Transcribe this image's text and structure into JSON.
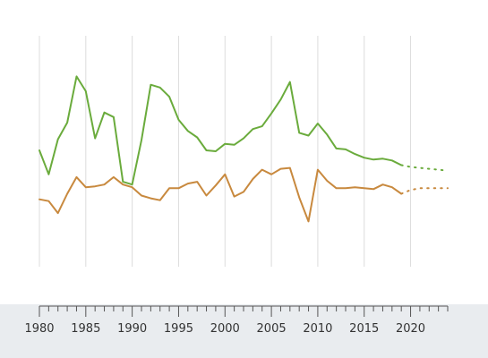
{
  "chart_data": {
    "type": "line",
    "title": "",
    "xlabel": "",
    "ylabel": "",
    "x_ticks": [
      1980,
      1985,
      1990,
      1995,
      2000,
      2005,
      2010,
      2015,
      2020
    ],
    "xlim": [
      1980,
      2024
    ],
    "ylim": [
      -5,
      20
    ],
    "grid": true,
    "series": [
      {
        "color": "#6aab3c",
        "x": [
          1980,
          1981,
          1982,
          1983,
          1984,
          1985,
          1986,
          1987,
          1988,
          1989,
          1990,
          1991,
          1992,
          1993,
          1994,
          1995,
          1996,
          1997,
          1998,
          1999,
          2000,
          2001,
          2002,
          2003,
          2004,
          2005,
          2006,
          2007,
          2008,
          2009,
          2010,
          2011,
          2012,
          2013,
          2014,
          2015,
          2016,
          2017,
          2018,
          2019
        ],
        "values": [
          7.6,
          5.0,
          8.8,
          10.6,
          15.6,
          14.0,
          8.9,
          11.7,
          11.2,
          4.2,
          3.9,
          8.7,
          14.7,
          14.4,
          13.4,
          10.9,
          9.7,
          9.0,
          7.6,
          7.5,
          8.3,
          8.2,
          8.9,
          9.9,
          10.2,
          11.6,
          13.1,
          15.0,
          9.5,
          9.2,
          10.5,
          9.3,
          7.8,
          7.7,
          7.2,
          6.8,
          6.6,
          6.7,
          6.5,
          6.0
        ],
        "dash": [
          false,
          false,
          false,
          false,
          false,
          false,
          false,
          false,
          false,
          false,
          false,
          false,
          false,
          false,
          false,
          false,
          false,
          false,
          false,
          false,
          false,
          false,
          false,
          false,
          false,
          false,
          false,
          false,
          false,
          false,
          false,
          false,
          false,
          false,
          false,
          false,
          false,
          false,
          false,
          false
        ]
      },
      {
        "color": "#6aab3c",
        "x": [
          2019,
          2020,
          2021,
          2022,
          2023,
          2024
        ],
        "values": [
          6.0,
          5.8,
          5.7,
          5.6,
          5.5,
          5.4
        ],
        "dashed": true
      },
      {
        "color": "#c8893e",
        "x": [
          1980,
          1981,
          1982,
          1983,
          1984,
          1985,
          1986,
          1987,
          1988,
          1989,
          1990,
          1991,
          1992,
          1993,
          1994,
          1995,
          1996,
          1997,
          1998,
          1999,
          2000,
          2001,
          2002,
          2003,
          2004,
          2005,
          2006,
          2007,
          2008,
          2009,
          2010,
          2011,
          2012,
          2013,
          2014,
          2015,
          2016,
          2017,
          2018,
          2019
        ],
        "values": [
          2.3,
          2.1,
          0.8,
          2.9,
          4.7,
          3.6,
          3.7,
          3.9,
          4.7,
          3.9,
          3.6,
          2.7,
          2.4,
          2.2,
          3.5,
          3.5,
          4.0,
          4.2,
          2.7,
          3.8,
          5.0,
          2.6,
          3.1,
          4.5,
          5.5,
          5.0,
          5.6,
          5.7,
          2.5,
          -0.1,
          5.5,
          4.3,
          3.5,
          3.5,
          3.6,
          3.5,
          3.4,
          3.9,
          3.6,
          2.9
        ],
        "dashed": false
      },
      {
        "color": "#c8893e",
        "x": [
          2019,
          2020,
          2021,
          2022,
          2023,
          2024
        ],
        "values": [
          2.9,
          3.3,
          3.5,
          3.5,
          3.5,
          3.5
        ],
        "dashed": true
      }
    ]
  }
}
